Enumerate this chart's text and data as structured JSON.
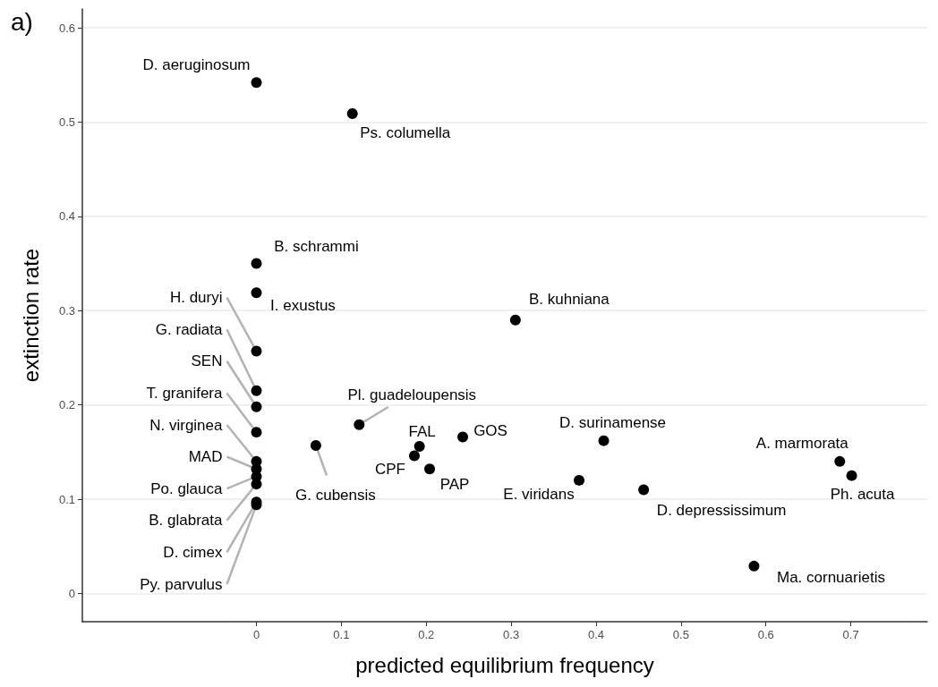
{
  "chart_data": {
    "type": "scatter",
    "xlabel": "predicted equilibrium frequency",
    "ylabel": "extinction rate",
    "x": [
      0,
      0.113,
      0,
      0,
      0.305,
      0.121,
      0.07,
      0.192,
      0.243,
      0.186,
      0.204,
      0.409,
      0.38,
      0.456,
      0.687,
      0.701,
      0.586,
      0,
      0,
      0,
      0,
      0,
      0,
      0,
      0,
      0,
      0
    ],
    "values": [
      0.542,
      0.509,
      0.35,
      0.319,
      0.29,
      0.179,
      0.157,
      0.156,
      0.166,
      0.146,
      0.132,
      0.162,
      0.12,
      0.11,
      0.14,
      0.125,
      0.029,
      0.257,
      0.215,
      0.198,
      0.171,
      0.14,
      0.132,
      0.124,
      0.116,
      0.097,
      0.094
    ],
    "color": "#000000",
    "marker": "circle",
    "xlim": [
      -0.205,
      0.79
    ],
    "xticks": [
      0,
      0.1,
      0.2,
      0.3,
      0.4,
      0.5,
      0.6,
      0.7
    ],
    "ylim": [
      -0.03,
      0.62
    ],
    "yticks": [
      0,
      0.1,
      0.2,
      0.3,
      0.4,
      0.5,
      0.6
    ],
    "grid": "y",
    "annotations": [
      "a)",
      {
        "text": "D. aeruginosum",
        "x": 0,
        "y": 0.542
      },
      {
        "text": "Ps. columella",
        "x": 0.113,
        "y": 0.509
      },
      {
        "text": "B. schrammi",
        "x": 0,
        "y": 0.35
      },
      {
        "text": "I. exustus",
        "x": 0,
        "y": 0.319
      },
      {
        "text": "B. kuhniana",
        "x": 0.305,
        "y": 0.29
      },
      {
        "text": "Pl. guadeloupensis",
        "x": 0.121,
        "y": 0.179
      },
      {
        "text": "G. cubensis",
        "x": 0.07,
        "y": 0.157
      },
      {
        "text": "FAL",
        "x": 0.192,
        "y": 0.156
      },
      {
        "text": "GOS",
        "x": 0.243,
        "y": 0.166
      },
      {
        "text": "CPF",
        "x": 0.186,
        "y": 0.146
      },
      {
        "text": "PAP",
        "x": 0.204,
        "y": 0.132
      },
      {
        "text": "D. surinamense",
        "x": 0.409,
        "y": 0.162
      },
      {
        "text": "E. viridans",
        "x": 0.38,
        "y": 0.12
      },
      {
        "text": "D. depressissimum",
        "x": 0.456,
        "y": 0.11
      },
      {
        "text": "A. marmorata",
        "x": 0.687,
        "y": 0.14
      },
      {
        "text": "Ph. acuta",
        "x": 0.701,
        "y": 0.125
      },
      {
        "text": "Ma. cornuarietis",
        "x": 0.586,
        "y": 0.029
      },
      {
        "text": "H. duryi",
        "x": 0,
        "y": 0.257
      },
      {
        "text": "G. radiata",
        "x": 0,
        "y": 0.215
      },
      {
        "text": "SEN",
        "x": 0,
        "y": 0.198
      },
      {
        "text": "T. granifera",
        "x": 0,
        "y": 0.171
      },
      {
        "text": "N. virginea",
        "x": 0,
        "y": 0.14
      },
      {
        "text": "MAD",
        "x": 0,
        "y": 0.132
      },
      {
        "text": "Po. glauca",
        "x": 0,
        "y": 0.124
      },
      {
        "text": "B. glabrata",
        "x": 0,
        "y": 0.116
      },
      {
        "text": "D. cimex",
        "x": 0,
        "y": 0.097
      },
      {
        "text": "Py. parvulus",
        "x": 0,
        "y": 0.094
      }
    ]
  }
}
